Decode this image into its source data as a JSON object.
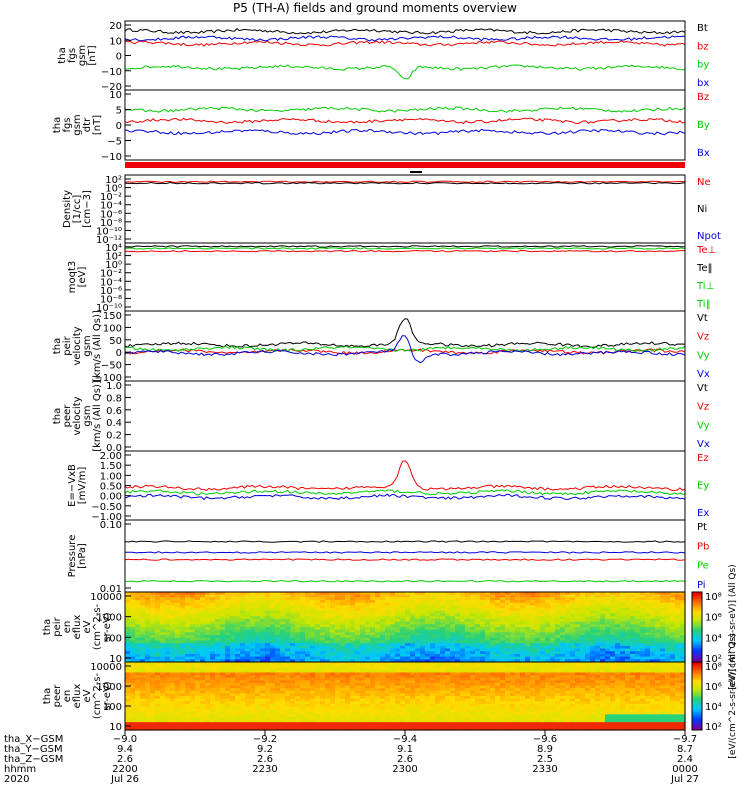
{
  "title": "P5 (TH-A) fields and ground moments overview",
  "colors": {
    "black": "#000000",
    "red": "#ee0000",
    "green": "#00cc00",
    "blue": "#0000dd"
  },
  "chart_data": [
    {
      "type": "line",
      "ylabel": [
        "tha",
        "fgs",
        "gsm",
        "[nT]"
      ],
      "ylim": [
        -20,
        20
      ],
      "yticks": [
        "20",
        "10",
        "0",
        "−10",
        "−20"
      ],
      "series": [
        {
          "name": "Bt",
          "color": "black",
          "level": 14
        },
        {
          "name": "bz",
          "color": "red",
          "level": 7
        },
        {
          "name": "by",
          "color": "green",
          "level": -7
        },
        {
          "name": "bx",
          "color": "blue",
          "level": 10
        }
      ]
    },
    {
      "type": "line",
      "ylabel": [
        "tha",
        "fgs",
        "gsm",
        "dtr",
        "[nT]"
      ],
      "ylim": [
        -15,
        10
      ],
      "yticks": [
        "10",
        "5",
        "0",
        "−5",
        "−10"
      ],
      "series": [
        {
          "name": "Bz",
          "color": "red",
          "level": -1
        },
        {
          "name": "By",
          "color": "green",
          "level": 3
        },
        {
          "name": "Bx",
          "color": "blue",
          "level": -5
        }
      ]
    },
    {
      "type": "line",
      "ylabel": [
        "Density",
        "[1/cc]",
        "[cm−3]"
      ],
      "yticks": [
        "10²",
        "10⁰",
        "10⁻²",
        "10⁻⁴",
        "10⁻⁶",
        "10⁻⁸",
        "10⁻¹⁰",
        "10⁻¹²"
      ],
      "series": [
        {
          "name": "Ne",
          "color": "red"
        },
        {
          "name": "Ni",
          "color": "black"
        },
        {
          "name": "Npot",
          "color": "blue"
        }
      ]
    },
    {
      "type": "line",
      "ylabel": [
        "moqt3",
        "[eV]"
      ],
      "yticks": [
        "10⁴",
        "10²",
        "10⁰",
        "10⁻²",
        "10⁻⁴",
        "10⁻⁶",
        "10⁻⁸",
        "10⁻¹⁰"
      ],
      "series": [
        {
          "name": "Te⊥",
          "color": "red"
        },
        {
          "name": "Te‖",
          "color": "black"
        },
        {
          "name": "Ti⊥",
          "color": "green"
        },
        {
          "name": "Ti‖",
          "color": "green"
        }
      ]
    },
    {
      "type": "line",
      "ylabel": [
        "tha",
        "peir",
        "velocity",
        "gsm",
        "[km/s (All Qs)]"
      ],
      "ylim": [
        -100,
        150
      ],
      "yticks": [
        "150",
        "100",
        "50",
        "0",
        "−50",
        "−100"
      ],
      "series": [
        {
          "name": "Vt",
          "color": "black",
          "level": 30
        },
        {
          "name": "Vz",
          "color": "red",
          "level": 5
        },
        {
          "name": "Vy",
          "color": "green",
          "level": 15
        },
        {
          "name": "Vx",
          "color": "blue",
          "level": 0
        }
      ]
    },
    {
      "type": "line",
      "ylabel": [
        "tha",
        "peer",
        "velocity",
        "gsm",
        "[km/s (All Qs)]"
      ],
      "yticks": [
        "1.0",
        "0.8",
        "0.6",
        "0.4",
        "0.2",
        "0.0"
      ],
      "series": [
        {
          "name": "Vt",
          "color": "black"
        },
        {
          "name": "Vz",
          "color": "red"
        },
        {
          "name": "Vy",
          "color": "green"
        },
        {
          "name": "Vx",
          "color": "blue"
        }
      ]
    },
    {
      "type": "line",
      "ylabel": [
        "E=−VxB",
        "[mV/m]"
      ],
      "ylim": [
        -1,
        2
      ],
      "yticks": [
        "2.00",
        "1.50",
        "1.00",
        "0.50",
        "0.00",
        "−0.50",
        "−1.00"
      ],
      "series": [
        {
          "name": "Ez",
          "color": "red",
          "level": 0.4
        },
        {
          "name": "Ey",
          "color": "green",
          "level": 0.2
        },
        {
          "name": "Ex",
          "color": "blue",
          "level": 0.0
        }
      ]
    },
    {
      "type": "line",
      "ylabel": [
        "Pressure",
        "[nPa]"
      ],
      "yticks": [
        "0.10",
        "0.01"
      ],
      "series": [
        {
          "name": "Pt",
          "color": "black"
        },
        {
          "name": "Pb",
          "color": "red"
        },
        {
          "name": "Pe",
          "color": "green"
        },
        {
          "name": "Pi",
          "color": "blue"
        }
      ]
    },
    {
      "type": "heatmap",
      "ylabel": [
        "tha",
        "peir",
        "en",
        "eflux",
        "eV",
        "(cm^2-s-",
        "sr-eV)"
      ],
      "yticks": [
        "10000",
        "1000",
        "100",
        "10"
      ],
      "colorbar": [
        "10⁸",
        "10⁶",
        "10⁴",
        "10²"
      ],
      "colorbar_label": "[eV/(cm^2-s-sr-eV)] (All Qs)"
    },
    {
      "type": "heatmap",
      "ylabel": [
        "tha",
        "peer",
        "en",
        "eflux",
        "eV",
        "(cm^2-s-",
        "sr-eV)"
      ],
      "yticks": [
        "10000",
        "1000",
        "100",
        "10"
      ],
      "colorbar": [
        "10⁸",
        "10⁶",
        "10⁴",
        "10²"
      ],
      "colorbar_label": "[eV/(cm^2-s-sr-eV)] (All Qs)"
    }
  ],
  "xaxis": {
    "row_labels": [
      "tha_X−GSM",
      "tha_Y−GSM",
      "tha_Z−GSM",
      "hhmm",
      "2020"
    ],
    "columns": [
      [
        "−9.0",
        "9.4",
        "2.6",
        "2200",
        "Jul 26"
      ],
      [
        "−9.2",
        "9.2",
        "2.6",
        "2230",
        ""
      ],
      [
        "−9.4",
        "9.1",
        "2.6",
        "2300",
        ""
      ],
      [
        "−9.6",
        "8.9",
        "2.5",
        "2330",
        ""
      ],
      [
        "−9.7",
        "8.7",
        "2.4",
        "0000",
        "Jul 27"
      ]
    ]
  }
}
